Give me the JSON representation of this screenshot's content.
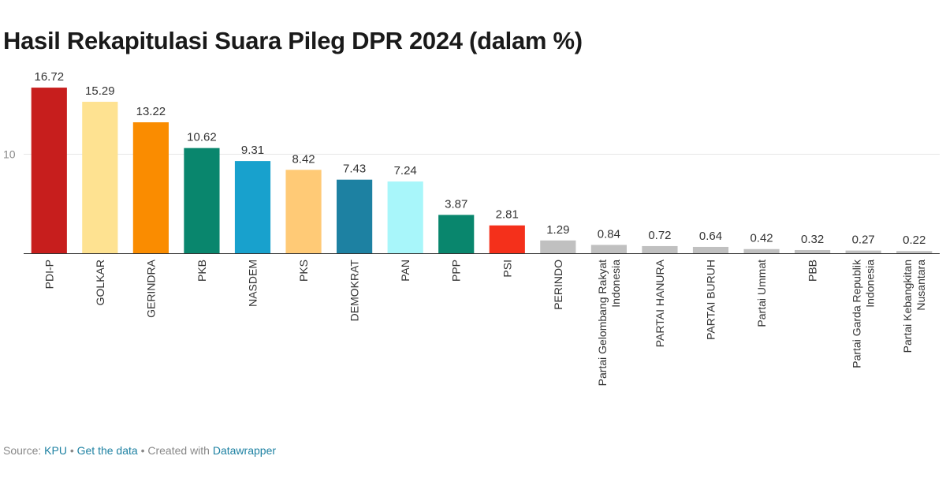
{
  "header": {
    "title": "Hasil Rekapitulasi Suara Pileg DPR 2024 (dalam %)"
  },
  "chart_data": {
    "type": "bar",
    "categories": [
      "PDI-P",
      "GOLKAR",
      "GERINDRA",
      "PKB",
      "NASDEM",
      "PKS",
      "DEMOKRAT",
      "PAN",
      "PPP",
      "PSI",
      "PERINDO",
      "Partai Gelombang Rakyat Indonesia",
      "PARTAI HANURA",
      "PARTAI BURUH",
      "Partai Ummat",
      "PBB",
      "Partai Garda Republik Indonesia",
      "Partai Kebangkitan Nusantara"
    ],
    "category_lines": [
      [
        "PDI-P"
      ],
      [
        "GOLKAR"
      ],
      [
        "GERINDRA"
      ],
      [
        "PKB"
      ],
      [
        "NASDEM"
      ],
      [
        "PKS"
      ],
      [
        "DEMOKRAT"
      ],
      [
        "PAN"
      ],
      [
        "PPP"
      ],
      [
        "PSI"
      ],
      [
        "PERINDO"
      ],
      [
        "Partai Gelombang Rakyat",
        "Indonesia"
      ],
      [
        "PARTAI HANURA"
      ],
      [
        "PARTAI BURUH"
      ],
      [
        "Partai Ummat"
      ],
      [
        "PBB"
      ],
      [
        "Partai Garda Republik",
        "Indonesia"
      ],
      [
        "Partai Kebangkitan",
        "Nusantara"
      ]
    ],
    "values": [
      16.72,
      15.29,
      13.22,
      10.62,
      9.31,
      8.42,
      7.43,
      7.24,
      3.87,
      2.81,
      1.29,
      0.84,
      0.72,
      0.64,
      0.42,
      0.32,
      0.27,
      0.22
    ],
    "value_labels": [
      "16.72",
      "15.29",
      "13.22",
      "10.62",
      "9.31",
      "8.42",
      "7.43",
      "7.24",
      "3.87",
      "2.81",
      "1.29",
      "0.84",
      "0.72",
      "0.64",
      "0.42",
      "0.32",
      "0.27",
      "0.22"
    ],
    "colors": [
      "#c71e1d",
      "#fee291",
      "#fa8c00",
      "#09866d",
      "#18a1cd",
      "#ffca76",
      "#1d81a2",
      "#a8f6fa",
      "#09866d",
      "#f4301b",
      "#c0c0c0",
      "#c0c0c0",
      "#c0c0c0",
      "#c0c0c0",
      "#c0c0c0",
      "#c0c0c0",
      "#c0c0c0",
      "#c0c0c0"
    ],
    "yticks": [
      10
    ],
    "ytick_labels": [
      "10"
    ],
    "ylim": [
      0,
      18
    ],
    "grid": true,
    "xlabel": "",
    "ylabel": ""
  },
  "footer": {
    "source_label": "Source: ",
    "source_link": "KPU",
    "sep1": " • ",
    "get_data": "Get the data",
    "sep2": " • Created with ",
    "created_with": "Datawrapper"
  }
}
